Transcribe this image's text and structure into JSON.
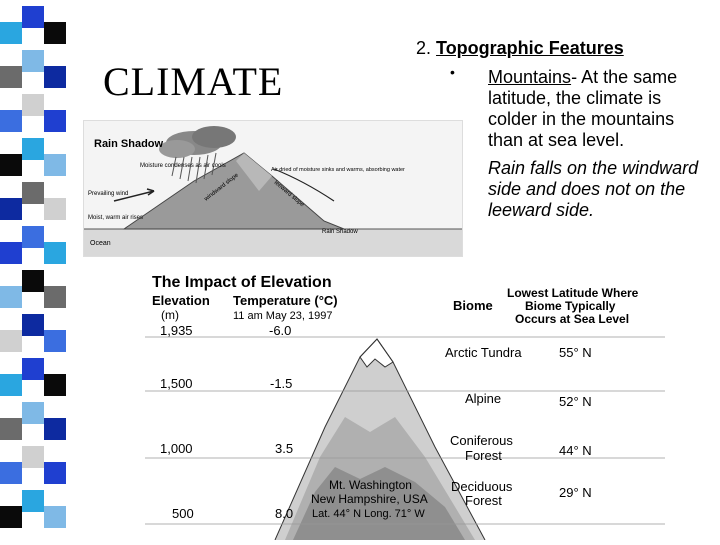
{
  "slide": {
    "title": "CLIMATE",
    "section_number": "2.",
    "section_title": "Topographic Features",
    "bullets": [
      {
        "lead": "Mountains",
        "text": "- At the same latitude, the climate is colder in the mountains than at sea level."
      },
      {
        "text": "Rain falls on the windward side and does not on the leeward side."
      }
    ]
  },
  "rain_shadow": {
    "title": "Rain Shadow",
    "labels": {
      "prevailing": "Prevailing wind",
      "moisture": "Moisture condenses as air cools",
      "moist_air": "Moist, warm air rises",
      "ocean": "Ocean",
      "dry_desc": "Air dried of moisture sinks and warms, absorbing water",
      "windward": "windward slope",
      "leeward": "leeward slope",
      "shadow": "Rain Shadow"
    }
  },
  "elevation": {
    "title": "The Impact of Elevation",
    "headers": {
      "elevation": "Elevation",
      "elevation_unit": "(m)",
      "temperature": "Temperature (°C)",
      "date": "11 am May 23, 1997",
      "biome": "Biome",
      "latitude": "Lowest Latitude Where Biome Typically Occurs at Sea Level"
    },
    "rows": [
      {
        "elevation": "1,935",
        "temperature": "-6.0",
        "biome": "Arctic Tundra",
        "latitude": "55° N"
      },
      {
        "elevation": "1,500",
        "temperature": "-1.5",
        "biome": "Alpine",
        "latitude": "52° N"
      },
      {
        "elevation": "1,000",
        "temperature": "3.5",
        "biome": "Coniferous Forest",
        "latitude": "44° N"
      },
      {
        "elevation": "500",
        "temperature": "8.0",
        "biome": "Deciduous Forest",
        "latitude": "29° N"
      }
    ],
    "mountain": {
      "name": "Mt. Washington",
      "location": "New Hampshire, USA",
      "coords": "Lat. 44° N Long. 71° W"
    }
  }
}
